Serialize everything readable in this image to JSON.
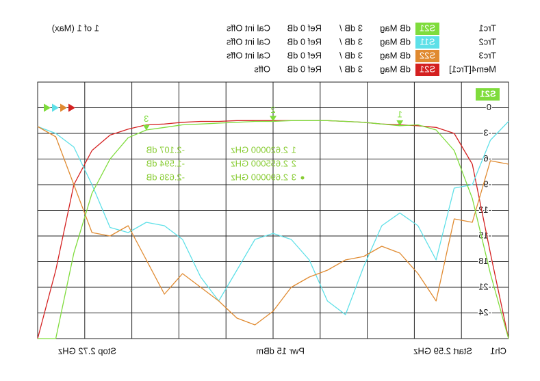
{
  "chart_data": {
    "type": "line",
    "status": "1 of 1 (Max)",
    "channel": "Ch1",
    "start_label": "Start 2.59 GHz",
    "power_label": "Pwr 15 dBm",
    "stop_label": "Stop 2.72 GHz",
    "active_trace": "S21",
    "xlim": [
      2.59,
      2.72
    ],
    "xticks": [
      2.59,
      2.603,
      2.616,
      2.629,
      2.642,
      2.655,
      2.668,
      2.681,
      2.694,
      2.707,
      2.72
    ],
    "ylim": [
      -27,
      3
    ],
    "yticks": [
      0,
      -3,
      -6,
      -9,
      -12,
      -15,
      -18,
      -21,
      -24
    ],
    "grid": true,
    "x": [
      2.59,
      2.595,
      2.6,
      2.605,
      2.61,
      2.615,
      2.62,
      2.625,
      2.63,
      2.635,
      2.64,
      2.645,
      2.65,
      2.655,
      2.66,
      2.665,
      2.67,
      2.675,
      2.68,
      2.685,
      2.69,
      2.695,
      2.7,
      2.705,
      2.71,
      2.715,
      2.72
    ],
    "series": [
      {
        "name": "Trc1",
        "param": "S21",
        "format": "dB Mag",
        "scale": "3 dB /",
        "ref": "Ref 0 dB",
        "cal": "Cal int Offs",
        "color": "#7fdc3c",
        "values": [
          -27,
          -19.4,
          -10.6,
          -5,
          -2.6,
          -2,
          -2.1,
          -1.9,
          -1.7,
          -1.6,
          -1.5,
          -1.5,
          -1.5,
          -1.6,
          -1.6,
          -1.7,
          -1.8,
          -1.9,
          -2.0,
          -2.3,
          -2.6,
          -3.5,
          -6,
          -10,
          -17,
          -27,
          -27
        ]
      },
      {
        "name": "Trc2",
        "param": "S11",
        "format": "dB Mag",
        "scale": "3 dB /",
        "ref": "Ref 0 dB",
        "cal": "Cal int Offs",
        "color": "#5ee0e8",
        "values": [
          -1.6,
          -3.8,
          -9,
          -9.4,
          -17.8,
          -13.8,
          -12.3,
          -13.8,
          -18.6,
          -24.2,
          -22.6,
          -17.8,
          -15.4,
          -14.7,
          -15.4,
          -19,
          -22.6,
          -19.8,
          -15.4,
          -13.8,
          -13.4,
          -14.6,
          -14,
          -9,
          -4.6,
          -3,
          -2.2
        ]
      },
      {
        "name": "Trc3",
        "param": "S22",
        "format": "dB Mag",
        "scale": "3 dB /",
        "ref": "Ref 0 dB",
        "cal": "Cal int Offs",
        "color": "#e08a30",
        "values": [
          -6.6,
          -6.2,
          -13.4,
          -13,
          -22.6,
          -19.4,
          -17,
          -16.2,
          -17.4,
          -17.8,
          -19,
          -19.8,
          -21,
          -23.8,
          -25.4,
          -24.6,
          -22.6,
          -21,
          -19.4,
          -21.8,
          -17.8,
          -13.8,
          -15,
          -14.6,
          -9,
          -3.4,
          -2.2
        ]
      },
      {
        "name": "Mem4[Trc1]",
        "param": "S21",
        "format": "dB Mag",
        "scale": "3 dB /",
        "ref": "Ref 0 dB",
        "cal": "Offs",
        "color": "#d42020",
        "values": [
          -27,
          -17,
          -6.6,
          -3,
          -2.3,
          -2.1,
          -2.0,
          -1.9,
          -1.7,
          -1.6,
          -1.5,
          -1.5,
          -1.5,
          -1.5,
          -1.5,
          -1.5,
          -1.6,
          -1.6,
          -1.7,
          -1.9,
          -2.0,
          -2.5,
          -3.2,
          -5,
          -9,
          -19,
          -27
        ]
      }
    ],
    "markers": [
      {
        "label": "1",
        "x": 2.62,
        "y": -2.107,
        "x_label": "2.620000 GHz",
        "y_label": "-2.107 dB"
      },
      {
        "label": "2",
        "x": 2.655,
        "y": -1.594,
        "x_label": "2.655000 GHz",
        "y_label": "-1.594 dB"
      },
      {
        "label": "3",
        "x": 2.69,
        "y": -2.636,
        "x_label": "2.690000 GHz",
        "y_label": "-2.636 dB"
      }
    ]
  }
}
